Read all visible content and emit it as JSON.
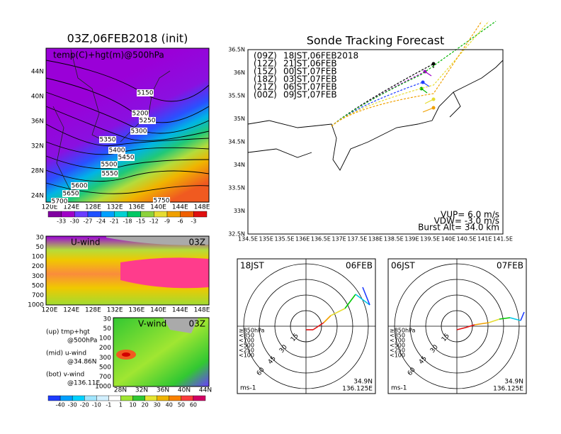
{
  "panels": {
    "map500": {
      "title": "03Z,06FEB2018 (init)",
      "field_label": "temp(C)+hgt(m)@500hPa",
      "lat_labels": [
        "44N",
        "40N",
        "36N",
        "32N",
        "28N",
        "24N"
      ],
      "lon_labels": [
        "120E",
        "124E",
        "128E",
        "132E",
        "136E",
        "140E",
        "144E",
        "148E"
      ],
      "contour_labels": [
        "5150",
        "5200",
        "5250",
        "5300",
        "5350",
        "5400",
        "5450",
        "5500",
        "5550",
        "5600",
        "5650",
        "5700",
        "5750"
      ],
      "colorbar_labels": [
        "-33",
        "-30",
        "-27",
        "-24",
        "-21",
        "-18",
        "-15",
        "-12",
        "-9",
        "-6",
        "-3"
      ]
    },
    "uwind": {
      "title": "U-wind",
      "time": "03Z",
      "p_labels": [
        "30",
        "50",
        "100",
        "200",
        "300",
        "500",
        "700",
        "1000"
      ],
      "lon_labels": [
        "120E",
        "124E",
        "128E",
        "132E",
        "136E",
        "140E",
        "144E",
        "148E"
      ]
    },
    "vwind": {
      "title": "V-wind",
      "time": "03Z",
      "p_labels": [
        "30",
        "50",
        "100",
        "200",
        "300",
        "500",
        "700",
        "1000"
      ],
      "lat_labels": [
        "28N",
        "32N",
        "36N",
        "40N",
        "44N"
      ]
    },
    "notes": [
      {
        "title": "(up) tmp+hgt",
        "detail": "@500hPa"
      },
      {
        "title": "(mid) u-wind",
        "detail": "@34.86N"
      },
      {
        "title": "(bot) v-wind",
        "detail": "@136.11E"
      }
    ],
    "wind_colorbar": [
      "-40",
      "-30",
      "-20",
      "-10",
      "-1",
      "1",
      "10",
      "20",
      "30",
      "40",
      "50",
      "60"
    ],
    "track": {
      "title": "Sonde Tracking Forecast",
      "launches": [
        {
          "code": "(09Z)",
          "label": "18JST,06FEB2018",
          "color": "#000000"
        },
        {
          "code": "(12Z)",
          "label": "21JST,06FEB",
          "color": "#a000c8"
        },
        {
          "code": "(15Z)",
          "label": "00JST,07FEB",
          "color": "#1e3cff"
        },
        {
          "code": "(18Z)",
          "label": "03JST,07FEB",
          "color": "#00b400"
        },
        {
          "code": "(21Z)",
          "label": "06JST,07FEB",
          "color": "#e6dc32"
        },
        {
          "code": "(00Z)",
          "label": "09JST,07FEB",
          "color": "#f0a000"
        }
      ],
      "lat_labels": [
        "36.5N",
        "36N",
        "35.5N",
        "35N",
        "34.5N",
        "34N",
        "33.5N",
        "33N",
        "32.5N"
      ],
      "lon_labels": [
        "134.5E",
        "135E",
        "135.5E",
        "136E",
        "136.5E",
        "137E",
        "137.5E",
        "138E",
        "138.5E",
        "139E",
        "139.5E",
        "140E",
        "140.5E",
        "141E",
        "141.5E"
      ],
      "params": [
        "VUP= 6.0 m/s",
        "VDW= -3.0 m/s",
        "Burst Alt= 34.0 km"
      ]
    },
    "hodographs": [
      {
        "time": "18JST",
        "date": "06FEB",
        "rings": [
          "15",
          "30",
          "45",
          "60"
        ],
        "levels": [
          "≥850hPa",
          "<850",
          "<700",
          "<500",
          "<250",
          "<100"
        ],
        "units": "ms-1",
        "lat": "34.9N",
        "lon": "136.125E"
      },
      {
        "time": "06JST",
        "date": "07FEB",
        "rings": [
          "15",
          "30",
          "45",
          "60"
        ],
        "levels": [
          "≥850hPa",
          "<850",
          "<700",
          "<500",
          "<250",
          "<100"
        ],
        "units": "ms-1",
        "lat": "34.9N",
        "lon": "136.125E"
      }
    ]
  }
}
